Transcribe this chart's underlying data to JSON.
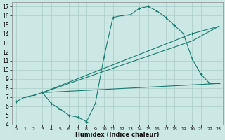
{
  "bg_color": "#cce8e4",
  "grid_color": "#aaccc8",
  "line_color": "#1a7a6e",
  "series1_x": [
    0,
    1,
    2,
    3,
    4,
    5,
    6,
    7,
    8,
    9,
    10,
    11,
    12,
    13,
    14,
    15,
    16,
    17,
    18,
    19,
    20,
    21,
    22,
    23
  ],
  "series1_y": [
    6.5,
    7.0,
    7.2,
    7.5,
    6.3,
    5.7,
    5.0,
    4.8,
    4.3,
    6.3,
    11.5,
    15.8,
    16.0,
    16.1,
    16.8,
    17.0,
    16.5,
    15.8,
    14.9,
    14.0,
    11.2,
    9.5,
    8.5,
    8.5
  ],
  "series2_x": [
    3,
    20,
    23
  ],
  "series2_y": [
    7.5,
    14.0,
    14.8
  ],
  "series3_x": [
    3,
    20,
    23
  ],
  "series3_y": [
    7.5,
    13.2,
    14.8
  ],
  "series4_x": [
    3,
    23
  ],
  "series4_y": [
    7.5,
    8.5
  ],
  "xlabel": "Humidex (Indice chaleur)",
  "xlim": [
    -0.5,
    23.5
  ],
  "ylim": [
    4,
    17.5
  ],
  "xticks": [
    0,
    1,
    2,
    3,
    4,
    5,
    6,
    7,
    8,
    9,
    10,
    11,
    12,
    13,
    14,
    15,
    16,
    17,
    18,
    19,
    20,
    21,
    22,
    23
  ],
  "yticks": [
    4,
    5,
    6,
    7,
    8,
    9,
    10,
    11,
    12,
    13,
    14,
    15,
    16,
    17
  ]
}
